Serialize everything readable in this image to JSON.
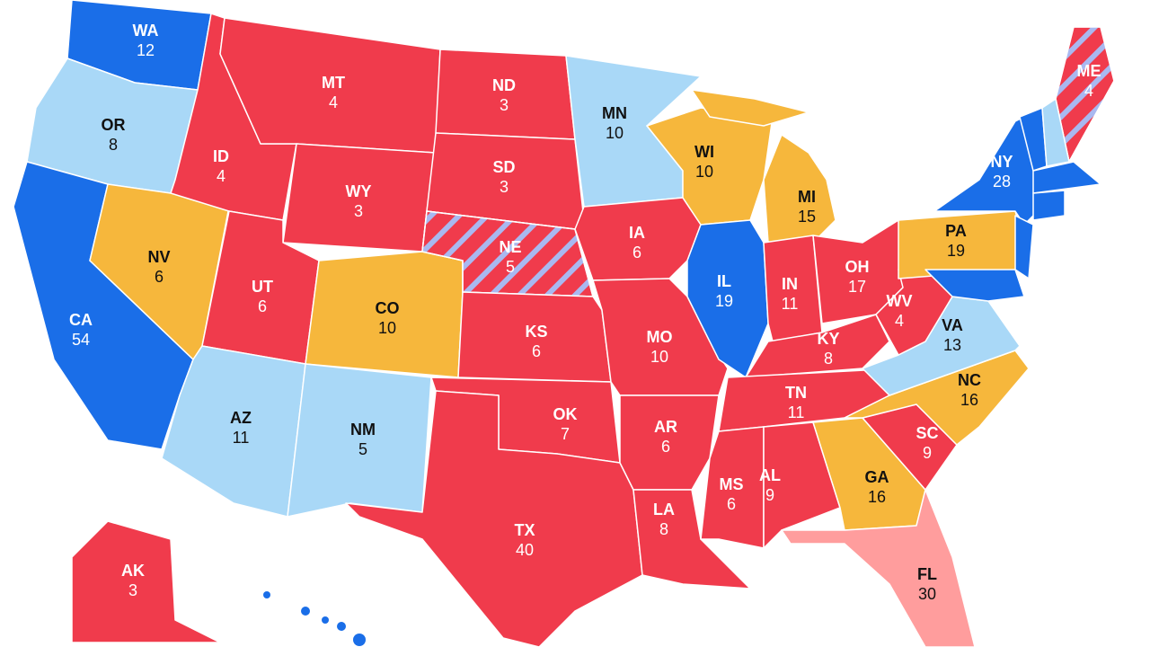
{
  "states": [
    {
      "abbr": "WA",
      "votes": 12,
      "color": "#1a6ee8"
    },
    {
      "abbr": "OR",
      "votes": 8,
      "color": "#a9d8f7"
    },
    {
      "abbr": "CA",
      "votes": 54,
      "color": "#1a6ee8"
    },
    {
      "abbr": "NV",
      "votes": 6,
      "color": "#f6b73c"
    },
    {
      "abbr": "ID",
      "votes": 4,
      "color": "#f03b4c"
    },
    {
      "abbr": "MT",
      "votes": 4,
      "color": "#f03b4c"
    },
    {
      "abbr": "WY",
      "votes": 3,
      "color": "#f03b4c"
    },
    {
      "abbr": "UT",
      "votes": 6,
      "color": "#f03b4c"
    },
    {
      "abbr": "AZ",
      "votes": 11,
      "color": "#f6b73c"
    },
    {
      "abbr": "CO",
      "votes": 10,
      "color": "#a9d8f7"
    },
    {
      "abbr": "NM",
      "votes": 5,
      "color": "#a9d8f7"
    },
    {
      "abbr": "ND",
      "votes": 3,
      "color": "#f03b4c"
    },
    {
      "abbr": "SD",
      "votes": 3,
      "color": "#f03b4c"
    },
    {
      "abbr": "NE",
      "votes": 5,
      "color": "#f03b4c",
      "hatched": true
    },
    {
      "abbr": "KS",
      "votes": 6,
      "color": "#f03b4c"
    },
    {
      "abbr": "OK",
      "votes": 7,
      "color": "#f03b4c"
    },
    {
      "abbr": "TX",
      "votes": 40,
      "color": "#f03b4c"
    },
    {
      "abbr": "MN",
      "votes": 10,
      "color": "#a9d8f7"
    },
    {
      "abbr": "IA",
      "votes": 6,
      "color": "#f03b4c"
    },
    {
      "abbr": "MO",
      "votes": 10,
      "color": "#f03b4c"
    },
    {
      "abbr": "AR",
      "votes": 6,
      "color": "#f03b4c"
    },
    {
      "abbr": "LA",
      "votes": 8,
      "color": "#f03b4c"
    },
    {
      "abbr": "WI",
      "votes": 10,
      "color": "#f6b73c"
    },
    {
      "abbr": "IL",
      "votes": 19,
      "color": "#1a6ee8"
    },
    {
      "abbr": "MI",
      "votes": 15,
      "color": "#f6b73c"
    },
    {
      "abbr": "IN",
      "votes": 11,
      "color": "#f03b4c"
    },
    {
      "abbr": "OH",
      "votes": 17,
      "color": "#f03b4c"
    },
    {
      "abbr": "KY",
      "votes": 8,
      "color": "#f03b4c"
    },
    {
      "abbr": "TN",
      "votes": 11,
      "color": "#f03b4c"
    },
    {
      "abbr": "MS",
      "votes": 6,
      "color": "#f03b4c"
    },
    {
      "abbr": "AL",
      "votes": 9,
      "color": "#f03b4c"
    },
    {
      "abbr": "GA",
      "votes": 16,
      "color": "#f6b73c"
    },
    {
      "abbr": "FL",
      "votes": 30,
      "color": "#ff9d9d"
    },
    {
      "abbr": "SC",
      "votes": 9,
      "color": "#f03b4c"
    },
    {
      "abbr": "NC",
      "votes": 16,
      "color": "#f6b73c"
    },
    {
      "abbr": "VA",
      "votes": 13,
      "color": "#a9d8f7"
    },
    {
      "abbr": "WV",
      "votes": 4,
      "color": "#f03b4c"
    },
    {
      "abbr": "PA",
      "votes": 19,
      "color": "#f6b73c"
    },
    {
      "abbr": "NY",
      "votes": 28,
      "color": "#1a6ee8"
    },
    {
      "abbr": "ME",
      "votes": 4,
      "color": "#f03b4c",
      "hatched": true
    },
    {
      "abbr": "AK",
      "votes": 3,
      "color": "#f03b4c"
    }
  ]
}
